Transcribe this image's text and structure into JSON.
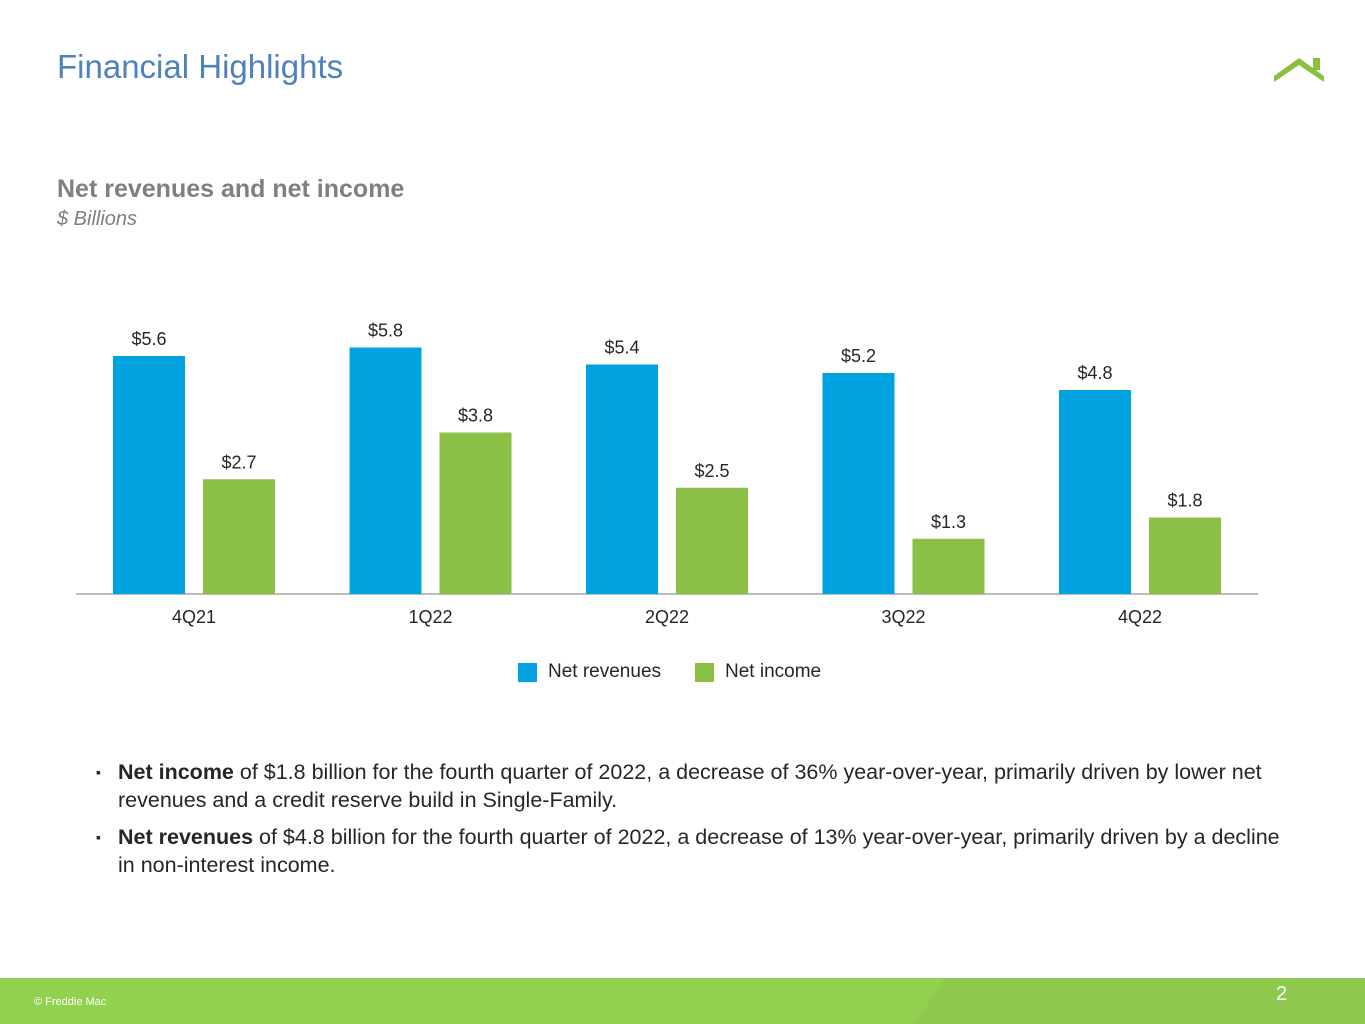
{
  "page": {
    "title": "Financial Highlights",
    "footer_copyright": "© Freddie Mac",
    "page_number": "2"
  },
  "logo": {
    "icon": "freddie-mac-roof-logo-icon",
    "color": "#8bbf3f"
  },
  "colors": {
    "title": "#4f81bd",
    "net_revenues": "#00a3e0",
    "net_income": "#8bbf46",
    "footer": "#92d050"
  },
  "chart_data": {
    "type": "bar",
    "title": "Net revenues and net income",
    "subtitle": "$ Billions",
    "categories": [
      "4Q21",
      "1Q22",
      "2Q22",
      "3Q22",
      "4Q22"
    ],
    "series": [
      {
        "name": "Net revenues",
        "values": [
          5.6,
          5.8,
          5.4,
          5.2,
          4.8
        ],
        "labels": [
          "$5.6",
          "$5.8",
          "$5.4",
          "$5.2",
          "$4.8"
        ]
      },
      {
        "name": "Net income",
        "values": [
          2.7,
          3.8,
          2.5,
          1.3,
          1.8
        ],
        "labels": [
          "$2.7",
          "$3.8",
          "$2.5",
          "$1.3",
          "$1.8"
        ]
      }
    ],
    "ylim": [
      0,
      6
    ],
    "xlabel": "",
    "ylabel": "",
    "grid": false,
    "legend": "bottom-center"
  },
  "bullets": [
    {
      "bold": "Net income",
      "text": " of $1.8 billion for the fourth quarter of 2022, a decrease of 36% year-over-year, primarily driven by lower net revenues and a credit reserve build in Single-Family."
    },
    {
      "bold": "Net revenues",
      "text": " of $4.8 billion for the fourth quarter of 2022, a decrease of 13% year-over-year, primarily driven by a decline in non-interest income."
    }
  ]
}
